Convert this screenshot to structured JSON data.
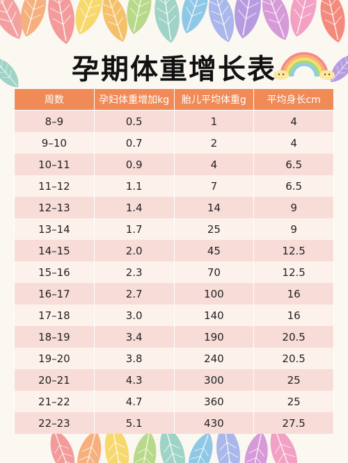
{
  "title": "孕期体重增长表",
  "colors": {
    "header_bg": "#f08a56",
    "row_odd": "#f7dcd8",
    "row_even": "#fdf1ec",
    "background": "#fbf7f1"
  },
  "table": {
    "headers": [
      "周数",
      "孕妇体重增加kg",
      "胎儿平均体重g",
      "平均身长cm"
    ],
    "rows": [
      [
        "8–9",
        "0.5",
        "1",
        "4"
      ],
      [
        "9–10",
        "0.7",
        "2",
        "4"
      ],
      [
        "10–11",
        "0.9",
        "4",
        "6.5"
      ],
      [
        "11–12",
        "1.1",
        "7",
        "6.5"
      ],
      [
        "12–13",
        "1.4",
        "14",
        "9"
      ],
      [
        "13–14",
        "1.7",
        "25",
        "9"
      ],
      [
        "14–15",
        "2.0",
        "45",
        "12.5"
      ],
      [
        "15–16",
        "2.3",
        "70",
        "12.5"
      ],
      [
        "16–17",
        "2.7",
        "100",
        "16"
      ],
      [
        "17–18",
        "3.0",
        "140",
        "16"
      ],
      [
        "18–19",
        "3.4",
        "190",
        "20.5"
      ],
      [
        "19–20",
        "3.8",
        "240",
        "20.5"
      ],
      [
        "20–21",
        "4.3",
        "300",
        "25"
      ],
      [
        "21–22",
        "4.7",
        "360",
        "25"
      ],
      [
        "22–23",
        "5.1",
        "430",
        "27.5"
      ]
    ]
  },
  "decorations": {
    "top_leaves": "colorful-leaves-border",
    "bottom_leaves": "colorful-leaves-border",
    "corner": "rainbow-with-clouds"
  }
}
